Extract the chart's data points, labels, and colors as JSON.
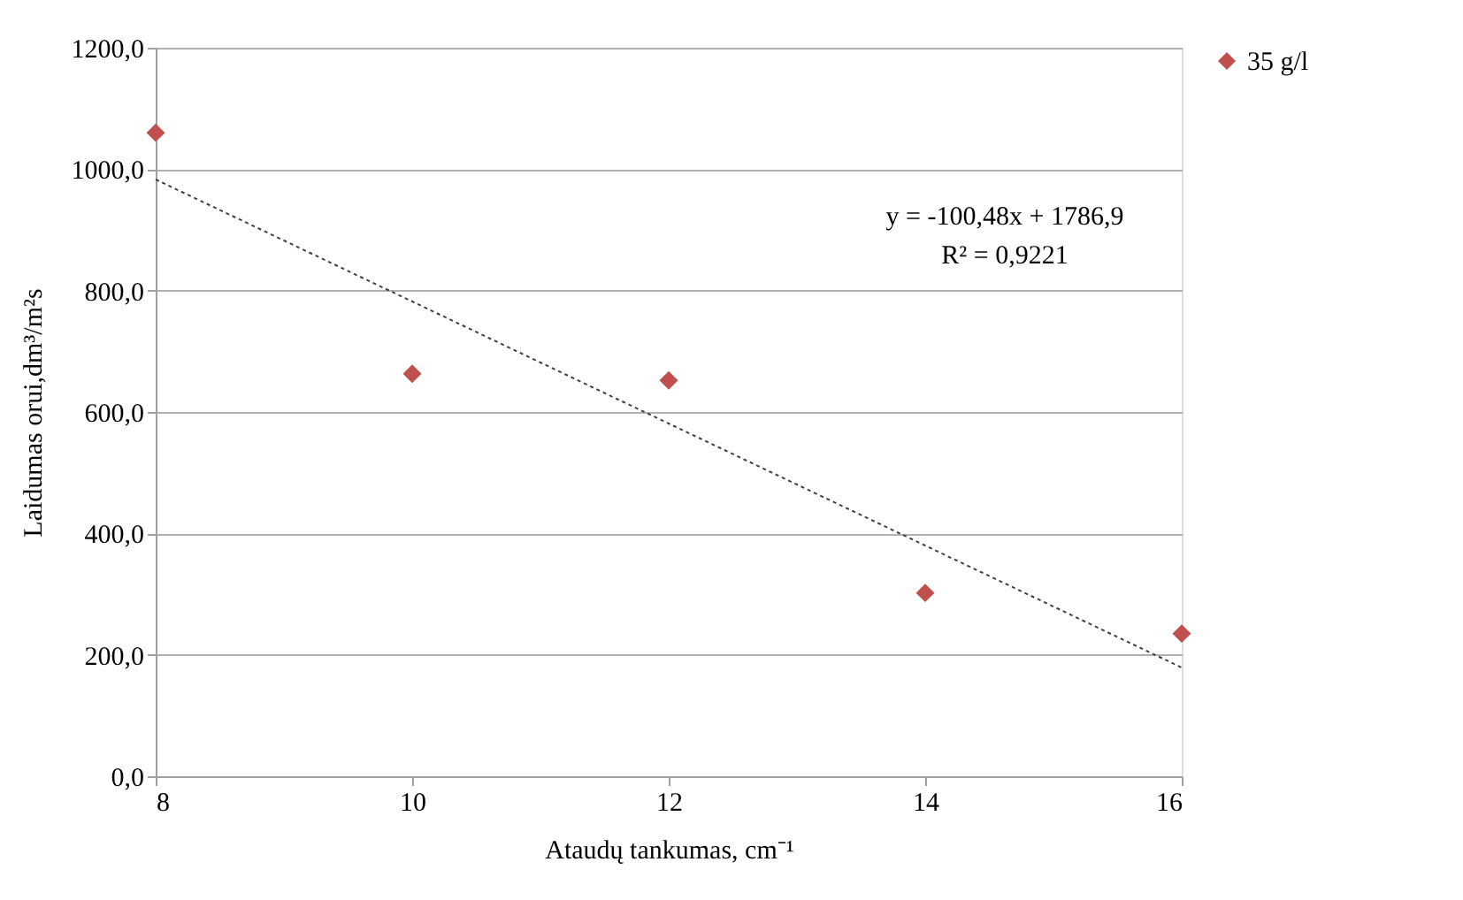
{
  "chart_data": {
    "type": "scatter",
    "xlabel": "Ataudų tankumas, cm⁻¹",
    "ylabel": "Laidumas orui,dm³/m²s",
    "x": [
      8,
      10,
      12,
      14,
      16
    ],
    "series": [
      {
        "name": "35 g/l",
        "color": "#c0504d",
        "marker": "diamond",
        "values": [
          1060,
          663,
          652,
          302,
          235
        ]
      },
      {
        "type": "line",
        "color": "#404040",
        "line_style": "dotted",
        "marker": "none",
        "x": [
          8,
          16
        ],
        "values": [
          983,
          179
        ]
      }
    ],
    "annotations": [
      "y = -100,48x + 1786,9",
      "R² = 0,9221"
    ],
    "xlim": [
      8,
      16
    ],
    "xticks": [
      8,
      10,
      12,
      14,
      16
    ],
    "ylim": [
      0,
      1200
    ],
    "yticks": [
      {
        "value": 0,
        "label": "0,0"
      },
      {
        "value": 200,
        "label": "200,0"
      },
      {
        "value": 400,
        "label": "400,0"
      },
      {
        "value": 600,
        "label": "600,0"
      },
      {
        "value": 800,
        "label": "800,0"
      },
      {
        "value": 1000,
        "label": "1000,0"
      },
      {
        "value": 1200,
        "label": "1200,0"
      }
    ],
    "grid": "y",
    "legend": "right"
  }
}
